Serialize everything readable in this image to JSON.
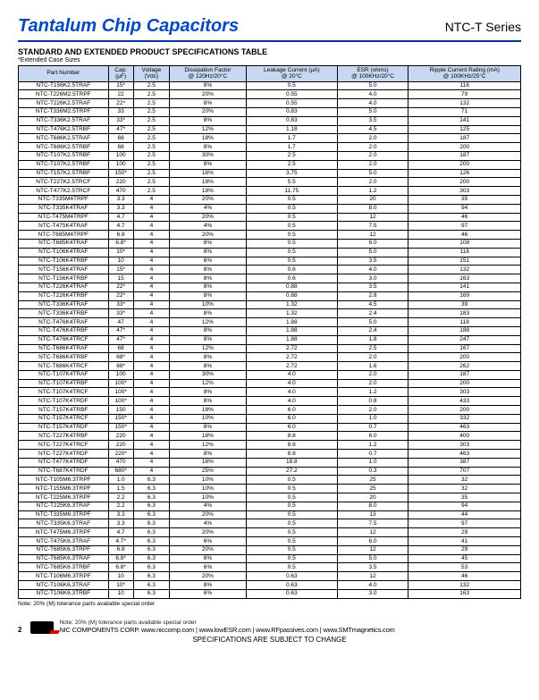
{
  "header": {
    "title": "Tantalum Chip Capacitors",
    "series": "NTC-T Series"
  },
  "section": {
    "subtitle": "STANDARD AND EXTENDED PRODUCT SPECIFICATIONS TABLE",
    "subnote": "*Extended Case Sizes"
  },
  "table": {
    "columns": [
      "Part Number",
      "Cap.\n(µF)",
      "Voltage\n(Vdc)",
      "Dissipation Factor\n@ 120Hz/20°C",
      "Leakage Current (µA)\n@ 20°C",
      "ESR (ohms)\n@ 100KHz/20°C",
      "Ripple Current Rating (mA)\n@ 100KHz/25°C"
    ],
    "rows": [
      [
        "NTC-T156K2.5TRAF",
        "15*",
        "2.5",
        "8%",
        "0.5",
        "5.0",
        "118"
      ],
      [
        "NTC-T226M2.5TRPF",
        "22",
        "2.5",
        "20%",
        "0.55",
        "4.0",
        "79"
      ],
      [
        "NTC-T226K2.5TRAF",
        "22*",
        "2.5",
        "8%",
        "0.55",
        "4.0",
        "132"
      ],
      [
        "NTC-T336M2.5TRPF",
        "33",
        "2.5",
        "20%",
        "0.83",
        "5.0",
        "71"
      ],
      [
        "NTC-T336K2.5TRAF",
        "33*",
        "2.5",
        "8%",
        "0.83",
        "3.5",
        "141"
      ],
      [
        "NTC-T476K2.5TRBF",
        "47*",
        "2.5",
        "12%",
        "1.18",
        "4.5",
        "125"
      ],
      [
        "NTC-T686K2.5TRAF",
        "68",
        "2.5",
        "18%",
        "1.7",
        "2.0",
        "187"
      ],
      [
        "NTC-T686K2.5TRBF",
        "68",
        "2.5",
        "8%",
        "1.7",
        "2.0",
        "200"
      ],
      [
        "NTC-T107K2.5TRBF",
        "100",
        "2.5",
        "30%",
        "2.5",
        "2.0",
        "187"
      ],
      [
        "NTC-T107K2.5TRBF",
        "100",
        "2.5",
        "8%",
        "2.5",
        "2.0",
        "200"
      ],
      [
        "NTC-T157K2.5TRBF",
        "150*",
        "2.5",
        "16%",
        "3.75",
        "5.0",
        "126"
      ],
      [
        "NTC-T227K2.5TRCF",
        "220",
        "2.5",
        "18%",
        "5.5",
        "2.0",
        "200"
      ],
      [
        "NTC-T477K2.5TRCF",
        "470",
        "2.5",
        "18%",
        "11.75",
        "1.2",
        "303"
      ],
      [
        "NTC-T335M4TRPF",
        "3.3",
        "4",
        "20%",
        "0.5",
        "20",
        "35"
      ],
      [
        "NTC-T335K4TRAF",
        "3.3",
        "4",
        "4%",
        "0.5",
        "8.0",
        "94"
      ],
      [
        "NTC-T475M4TRPF",
        "4.7",
        "4",
        "20%",
        "0.5",
        "12",
        "46"
      ],
      [
        "NTC-T475K4TRAF",
        "4.7",
        "4",
        "4%",
        "0.5",
        "7.5",
        "97"
      ],
      [
        "NTC-T685M4TRPF",
        "6.8",
        "4",
        "20%",
        "0.5",
        "12",
        "46"
      ],
      [
        "NTC-T685K4TRAF",
        "6.8*",
        "4",
        "8%",
        "0.5",
        "6.0",
        "108"
      ],
      [
        "NTC-T106K4TRAF",
        "10*",
        "4",
        "8%",
        "0.5",
        "5.0",
        "118"
      ],
      [
        "NTC-T106K4TRBF",
        "10",
        "4",
        "6%",
        "0.5",
        "3.5",
        "151"
      ],
      [
        "NTC-T156K4TRAF",
        "15*",
        "4",
        "8%",
        "0.6",
        "4.0",
        "132"
      ],
      [
        "NTC-T156K4TRBF",
        "15",
        "4",
        "8%",
        "0.6",
        "3.0",
        "163"
      ],
      [
        "NTC-T226K4TRAF",
        "22*",
        "4",
        "8%",
        "0.88",
        "3.5",
        "141"
      ],
      [
        "NTC-T226K4TRBF",
        "22*",
        "4",
        "8%",
        "0.88",
        "2.8",
        "169"
      ],
      [
        "NTC-T336K4TRAF",
        "33*",
        "4",
        "10%",
        "1.32",
        "4.5",
        "39"
      ],
      [
        "NTC-T336K4TRBF",
        "33*",
        "4",
        "8%",
        "1.32",
        "2.4",
        "183"
      ],
      [
        "NTC-T476K4TRAF",
        "47",
        "4",
        "12%",
        "1.88",
        "5.0",
        "118"
      ],
      [
        "NTC-T476K4TRBF",
        "47*",
        "4",
        "8%",
        "1.88",
        "2.4",
        "188"
      ],
      [
        "NTC-T476K4TRCF",
        "47*",
        "4",
        "8%",
        "1.88",
        "1.8",
        "247"
      ],
      [
        "NTC-T686K4TRAF",
        "68",
        "4",
        "12%",
        "2.72",
        "2.5",
        "167"
      ],
      [
        "NTC-T686K4TRBF",
        "68*",
        "4",
        "8%",
        "2.72",
        "2.0",
        "200"
      ],
      [
        "NTC-T686K4TRCF",
        "68*",
        "4",
        "8%",
        "2.72",
        "1.6",
        "262"
      ],
      [
        "NTC-T107K4TRAF",
        "100",
        "4",
        "30%",
        "4.0",
        "2.0",
        "187"
      ],
      [
        "NTC-T107K4TRBF",
        "100*",
        "4",
        "12%",
        "4.0",
        "2.0",
        "200"
      ],
      [
        "NTC-T107K4TRCF",
        "100*",
        "4",
        "8%",
        "4.0",
        "1.2",
        "303"
      ],
      [
        "NTC-T107K4TRDF",
        "100*",
        "4",
        "8%",
        "4.0",
        "0.8",
        "433"
      ],
      [
        "NTC-T157K4TRBF",
        "150",
        "4",
        "18%",
        "6.0",
        "2.0",
        "200"
      ],
      [
        "NTC-T157K4TRCF",
        "150*",
        "4",
        "10%",
        "6.0",
        "1.0",
        "332"
      ],
      [
        "NTC-T157K4TRDF",
        "150*",
        "4",
        "8%",
        "6.0",
        "0.7",
        "463"
      ],
      [
        "NTC-T227K4TRBF",
        "220",
        "4",
        "18%",
        "8.8",
        "6.0",
        "400"
      ],
      [
        "NTC-T227K4TRCF",
        "220",
        "4",
        "12%",
        "8.8",
        "1.2",
        "303"
      ],
      [
        "NTC-T227K4TRDF",
        "220*",
        "4",
        "8%",
        "8.8",
        "0.7",
        "463"
      ],
      [
        "NTC-T477K4TRDF",
        "470",
        "4",
        "16%",
        "18.8",
        "1.0",
        "387"
      ],
      [
        "NTC-T687K4TRDF",
        "680*",
        "4",
        "25%",
        "27.2",
        "0.3",
        "707"
      ],
      [
        "NTC-T105M6.3TRPF",
        "1.0",
        "6.3",
        "10%",
        "0.5",
        "25",
        "32"
      ],
      [
        "NTC-T155M6.3TRPF",
        "1.5",
        "6.3",
        "10%",
        "0.5",
        "25",
        "32"
      ],
      [
        "NTC-T225M6.3TRPF",
        "2.2",
        "6.3",
        "10%",
        "0.5",
        "20",
        "35"
      ],
      [
        "NTC-T225K6.3TRAF",
        "2.2",
        "6.3",
        "4%",
        "0.5",
        "8.0",
        "94"
      ],
      [
        "NTC-T335M6.3TRPF",
        "3.3",
        "6.3",
        "20%",
        "0.5",
        "13",
        "44"
      ],
      [
        "NTC-T335K6.3TRAF",
        "3.3",
        "6.3",
        "4%",
        "0.5",
        "7.5",
        "97"
      ],
      [
        "NTC-T475M6.3TRPF",
        "4.7",
        "6.3",
        "20%",
        "0.5",
        "12",
        "29"
      ],
      [
        "NTC-T475K6.3TRAF",
        "4.7*",
        "6.3",
        "6%",
        "0.5",
        "6.0",
        "41"
      ],
      [
        "NTC-T685K6.3TRPF",
        "6.8",
        "6.3",
        "20%",
        "0.5",
        "12",
        "29"
      ],
      [
        "NTC-T685K6.3TRAF",
        "6.8*",
        "6.3",
        "6%",
        "0.5",
        "5.0",
        "45"
      ],
      [
        "NTC-T685K6.3TRBF",
        "6.8*",
        "6.3",
        "6%",
        "0.5",
        "3.5",
        "53"
      ],
      [
        "NTC-T106M6.3TRPF",
        "10",
        "6.3",
        "20%",
        "0.63",
        "12",
        "46"
      ],
      [
        "NTC-T106K6.3TRAF",
        "10*",
        "6.3",
        "8%",
        "0.63",
        "4.0",
        "132"
      ],
      [
        "NTC-T106K6.3TRBF",
        "10",
        "6.3",
        "6%",
        "0.63",
        "3.0",
        "163"
      ]
    ]
  },
  "footnote": "Note: 20% (M) tolerance parts available special order",
  "footer": {
    "overlap": "Note: 20% (M) tolerance parts available special order",
    "brand": "NIC COMPONENTS CORP.   www.niccomp.com   |   www.lowESR.com   |   www.RFpassives.com   |   www.SMTmagnetics.com",
    "pagenum": "2",
    "specchange": "SPECIFICATIONS ARE SUBJECT TO CHANGE"
  }
}
